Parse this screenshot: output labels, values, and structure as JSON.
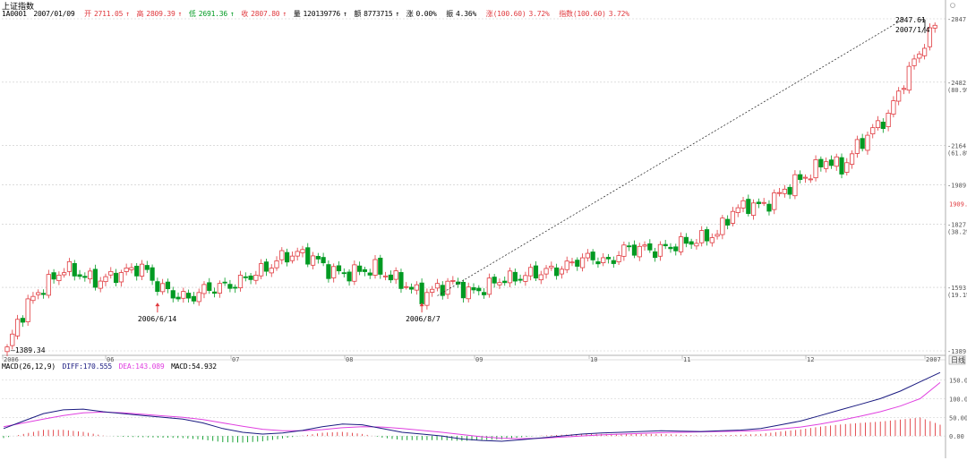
{
  "header": {
    "title": "上证指数",
    "code": "1A0001",
    "date": "2007/01/09",
    "open_label": "开",
    "open_value": "2711.05",
    "high_label": "高",
    "high_value": "2809.39",
    "low_label": "低",
    "low_value": "2691.36",
    "close_label": "收",
    "close_value": "2807.80",
    "volume_label": "量",
    "volume_value": "120139776",
    "amount_label": "额",
    "amount_value": "8773715",
    "change_label": "涨",
    "change_value": "0.00%",
    "amp_label": "振",
    "amp_value": "4.36%",
    "rise_label": "涨(100.60)",
    "rise_value": "3.72%",
    "index_label": "指数(100.60)",
    "index_value": "3.72%"
  },
  "macd_header": {
    "name": "MACD(26,12,9)",
    "diff": "DIFF:170.555",
    "dea": "DEA:143.089",
    "macd": "MACD:54.932"
  },
  "annotations": {
    "low_start": "1389.34",
    "low_mid1_date": "2006/6/14",
    "low_mid2_date": "2006/8/7",
    "peak_value": "2847.61",
    "peak_date": "2007/1/4"
  },
  "buttons": {
    "day_k": "日线"
  },
  "colors": {
    "up": "#e0393e",
    "down": "#009a22",
    "diff": "#1a1a80",
    "dea": "#e040e0",
    "grid": "#c8c8c8",
    "trend": "#333333",
    "current_price": "#e0393e"
  },
  "chart_data": {
    "type": "candlestick",
    "title": "上证指数",
    "y_axis": {
      "scale": "log",
      "ticks": [
        "2847.6",
        "2482.9",
        "2164.9",
        "1989.9",
        "1827.5",
        "1593.5",
        "1389.3"
      ],
      "percent_ticks": [
        "(80.9%)",
        "(61.8%)",
        "(38.2%)",
        "(19.1%)"
      ],
      "current_price_label": "1909.9",
      "ylim": [
        1389.3,
        2847.6
      ]
    },
    "x_axis": {
      "ticks": [
        "2006",
        "06",
        "07",
        "08",
        "09",
        "10",
        "11",
        "12",
        "2007"
      ]
    },
    "candles_summary": "daily candles, April 2006 to Jan 2007",
    "close_path": [
      [
        0,
        1390
      ],
      [
        2,
        1480
      ],
      [
        5,
        1560
      ],
      [
        8,
        1610
      ],
      [
        11,
        1660
      ],
      [
        14,
        1640
      ],
      [
        17,
        1615
      ],
      [
        20,
        1630
      ],
      [
        23,
        1650
      ],
      [
        26,
        1665
      ],
      [
        29,
        1600
      ],
      [
        32,
        1570
      ],
      [
        35,
        1555
      ],
      [
        38,
        1585
      ],
      [
        41,
        1595
      ],
      [
        44,
        1605
      ],
      [
        47,
        1635
      ],
      [
        50,
        1660
      ],
      [
        53,
        1700
      ],
      [
        56,
        1715
      ],
      [
        59,
        1700
      ],
      [
        62,
        1655
      ],
      [
        65,
        1640
      ],
      [
        68,
        1650
      ],
      [
        71,
        1660
      ],
      [
        74,
        1630
      ],
      [
        77,
        1600
      ],
      [
        80,
        1565
      ],
      [
        83,
        1590
      ],
      [
        86,
        1610
      ],
      [
        89,
        1575
      ],
      [
        92,
        1590
      ],
      [
        95,
        1620
      ],
      [
        98,
        1625
      ],
      [
        101,
        1640
      ],
      [
        104,
        1650
      ],
      [
        107,
        1660
      ],
      [
        110,
        1690
      ],
      [
        113,
        1700
      ],
      [
        116,
        1680
      ],
      [
        119,
        1730
      ],
      [
        122,
        1735
      ],
      [
        125,
        1725
      ],
      [
        128,
        1740
      ],
      [
        131,
        1755
      ],
      [
        134,
        1770
      ],
      [
        137,
        1790
      ],
      [
        140,
        1880
      ],
      [
        143,
        1905
      ],
      [
        146,
        1900
      ],
      [
        149,
        1950
      ],
      [
        152,
        2000
      ],
      [
        155,
        2040
      ],
      [
        158,
        2100
      ],
      [
        161,
        2060
      ],
      [
        164,
        2160
      ],
      [
        167,
        2240
      ],
      [
        170,
        2310
      ],
      [
        173,
        2490
      ],
      [
        176,
        2650
      ],
      [
        179,
        2807.8
      ]
    ],
    "macd": {
      "ylim": [
        -50,
        180
      ],
      "ticks": [
        "150.00",
        "100.00",
        "50.00",
        "0.00"
      ],
      "diff": [
        20,
        40,
        60,
        70,
        72,
        65,
        60,
        55,
        50,
        45,
        35,
        20,
        10,
        5,
        8,
        15,
        25,
        32,
        30,
        20,
        10,
        5,
        0,
        -8,
        -12,
        -14,
        -10,
        -5,
        0,
        5,
        8,
        10,
        12,
        14,
        13,
        12,
        14,
        16,
        20,
        30,
        40,
        55,
        70,
        85,
        100,
        120,
        145,
        170
      ],
      "dea": [
        25,
        35,
        45,
        55,
        62,
        64,
        62,
        58,
        54,
        50,
        44,
        35,
        26,
        18,
        14,
        14,
        17,
        22,
        25,
        24,
        20,
        15,
        10,
        4,
        -2,
        -6,
        -7,
        -6,
        -3,
        0,
        3,
        5,
        7,
        9,
        10,
        11,
        12,
        13,
        15,
        19,
        24,
        32,
        42,
        53,
        65,
        80,
        100,
        143
      ],
      "macd_bars": [
        -10,
        10,
        30,
        30,
        20,
        2,
        -4,
        -6,
        -8,
        -10,
        -18,
        -30,
        -32,
        -26,
        -12,
        2,
        16,
        20,
        10,
        -8,
        -20,
        -20,
        -20,
        -24,
        -20,
        -16,
        -6,
        2,
        6,
        10,
        10,
        10,
        10,
        10,
        6,
        2,
        4,
        6,
        10,
        22,
        32,
        46,
        56,
        64,
        70,
        80,
        90,
        54.9
      ]
    }
  }
}
